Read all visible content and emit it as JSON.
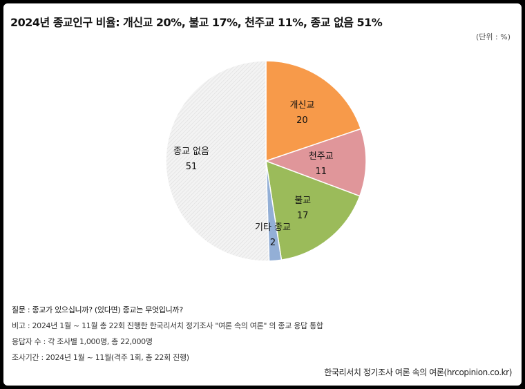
{
  "header": {
    "title": "2024년 종교인구 비율: 개신교 20%, 불교 17%, 천주교 11%, 종교 없음 51%",
    "unit": "(단위 : %)"
  },
  "chart_data": {
    "type": "pie",
    "title": "2024년 종교인구 비율: 개신교 20%, 불교 17%, 천주교 11%, 종교 없음 51%",
    "unit": "%",
    "slices": [
      {
        "label": "개신교",
        "value": 20,
        "color": "#f79a4a"
      },
      {
        "label": "천주교",
        "value": 11,
        "color": "#e0969a"
      },
      {
        "label": "불교",
        "value": 17,
        "color": "#9bbb5a"
      },
      {
        "label": "기타 종교",
        "value": 2,
        "color": "#93afd6"
      },
      {
        "label": "종교 없음",
        "value": 51,
        "color": "#eeeeee"
      }
    ]
  },
  "notes": {
    "question": "질문 : 종교가 있으십니까? (있다면) 종교는 무엇입니까?",
    "remark": "비고 : 2024년 1월 ~ 11월 총 22회 진행한 한국리서치 정기조사 \"여론 속의 여론\" 의 종교 응답 통합",
    "respondents": "응답자 수 : 각 조사별 1,000명, 총 22,000명",
    "period": "조사기간 : 2024년 1월 ~ 11월(격주 1회, 총 22회 진행)"
  },
  "source": "한국리서치 정기조사 여론 속의 여론(hrcopinion.co.kr)"
}
